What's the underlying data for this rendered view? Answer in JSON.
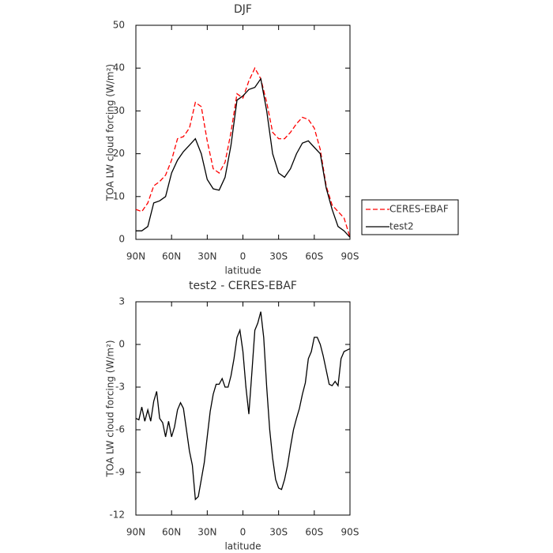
{
  "chart_data": [
    {
      "type": "line",
      "title": "DJF",
      "xlabel": "latitude",
      "ylabel": "TOA LW cloud forcing (W/m²)",
      "x": [
        90,
        85,
        80,
        75,
        70,
        65,
        60,
        55,
        50,
        45,
        40,
        35,
        30,
        25,
        20,
        15,
        10,
        5,
        0,
        -5,
        -10,
        -15,
        -20,
        -25,
        -30,
        -35,
        -40,
        -45,
        -50,
        -55,
        -60,
        -65,
        -70,
        -75,
        -80,
        -85,
        -90
      ],
      "series": [
        {
          "name": "CERES-EBAF",
          "color": "#ff0000",
          "linestyle": "dashed",
          "values": [
            7,
            6.5,
            8.5,
            12.5,
            13.5,
            15,
            18.5,
            23.5,
            24,
            26,
            32,
            31,
            23,
            16.5,
            15.5,
            18,
            25,
            34,
            33,
            37,
            40,
            37.5,
            32,
            25,
            23.5,
            23.5,
            25,
            27,
            28.5,
            28,
            26,
            21,
            12.5,
            8,
            6.5,
            5,
            0.5
          ]
        },
        {
          "name": "test2",
          "color": "#000000",
          "linestyle": "solid",
          "values": [
            2,
            2,
            3,
            8.5,
            9,
            10,
            15.5,
            18.5,
            20.5,
            22,
            23.5,
            20,
            14,
            11.8,
            11.5,
            14.5,
            22,
            32.5,
            33.5,
            35,
            35.5,
            37.5,
            30,
            20,
            15.5,
            14.5,
            16.5,
            20,
            22.5,
            23,
            21.5,
            20,
            12,
            7,
            3,
            2,
            0.5
          ]
        }
      ],
      "xlim": [
        90,
        -90
      ],
      "xticks": [
        {
          "value": 90,
          "label": "90N"
        },
        {
          "value": 60,
          "label": "60N"
        },
        {
          "value": 30,
          "label": "30N"
        },
        0,
        {
          "value": -30,
          "label": "30S"
        },
        {
          "value": -60,
          "label": "60S"
        },
        {
          "value": -90,
          "label": "90S"
        }
      ],
      "ylim": [
        0,
        50
      ],
      "yticks": [
        0,
        10,
        20,
        30,
        40,
        50
      ],
      "grid": false,
      "legend": "right"
    },
    {
      "type": "line",
      "title": "test2 - CERES-EBAF",
      "xlabel": "latitude",
      "ylabel": "TOA LW cloud forcing (W/m²)",
      "x": [
        90,
        87.5,
        85,
        82.5,
        80,
        77.5,
        75,
        72.5,
        70,
        67.5,
        65,
        62.5,
        60,
        57.5,
        55,
        52.5,
        50,
        47.5,
        45,
        42.5,
        40,
        37.5,
        35,
        32.5,
        30,
        27.5,
        25,
        22.5,
        20,
        17.5,
        15,
        12.5,
        10,
        7.5,
        5,
        2.5,
        0,
        -2.5,
        -5,
        -7.5,
        -10,
        -12.5,
        -15,
        -17.5,
        -20,
        -22.5,
        -25,
        -27.5,
        -30,
        -32.5,
        -35,
        -37.5,
        -40,
        -42.5,
        -45,
        -47.5,
        -50,
        -52.5,
        -55,
        -57.5,
        -60,
        -62.5,
        -65,
        -67.5,
        -70,
        -72.5,
        -75,
        -77.5,
        -80,
        -82.5,
        -85,
        -87.5,
        -90
      ],
      "series": [
        {
          "color": "#000000",
          "linestyle": "solid",
          "values": [
            -5.2,
            -5.3,
            -4.4,
            -5.4,
            -4.6,
            -5.4,
            -4,
            -3.3,
            -5.2,
            -5.5,
            -6.5,
            -5.4,
            -6.5,
            -5.8,
            -4.6,
            -4.1,
            -4.5,
            -6,
            -7.5,
            -8.5,
            -10.9,
            -10.7,
            -9.5,
            -8.3,
            -6.5,
            -4.7,
            -3.5,
            -2.8,
            -2.8,
            -2.4,
            -3,
            -3,
            -2.2,
            -1,
            0.5,
            1,
            -0.5,
            -3,
            -4.9,
            -2,
            1,
            1.5,
            2.3,
            0.5,
            -3,
            -6,
            -8,
            -9.5,
            -10.1,
            -10.2,
            -9.5,
            -8.5,
            -7.2,
            -6,
            -5.2,
            -4.5,
            -3.5,
            -2.7,
            -1,
            -0.5,
            0.5,
            0.5,
            0,
            -0.8,
            -1.8,
            -2.8,
            -2.9,
            -2.6,
            -2.9,
            -1,
            -0.5,
            -0.4,
            -0.3
          ]
        }
      ],
      "xlim": [
        90,
        -90
      ],
      "xticks": [
        {
          "value": 90,
          "label": "90N"
        },
        {
          "value": 60,
          "label": "60N"
        },
        {
          "value": 30,
          "label": "30N"
        },
        0,
        {
          "value": -30,
          "label": "30S"
        },
        {
          "value": -60,
          "label": "60S"
        },
        {
          "value": -90,
          "label": "90S"
        }
      ],
      "ylim": [
        -12,
        3
      ],
      "yticks": [
        -12,
        -9,
        -6,
        -3,
        0,
        3
      ],
      "grid": false
    }
  ]
}
